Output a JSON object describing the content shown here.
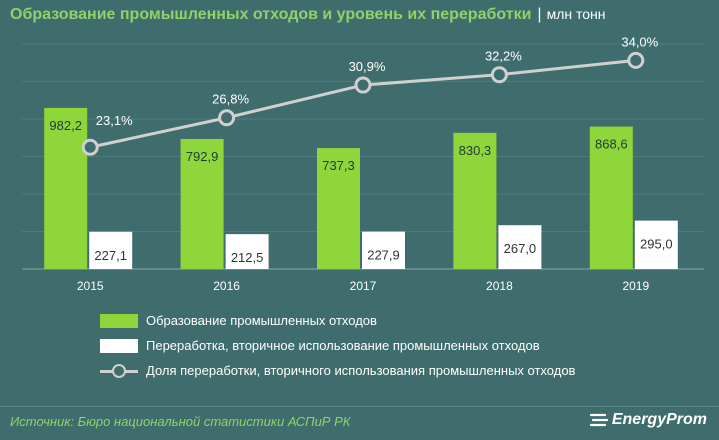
{
  "title": {
    "main": "Образование промышленных отходов и уровень их переработки",
    "separator": "|",
    "unit": "млн тонн"
  },
  "chart_data": {
    "type": "bar",
    "categories": [
      "2015",
      "2016",
      "2017",
      "2018",
      "2019"
    ],
    "series": [
      {
        "name": "Образование промышленных отходов",
        "type": "bar",
        "color": "#8ed639",
        "values": [
          982.2,
          792.9,
          737.3,
          830.3,
          868.6
        ],
        "labels": [
          "982,2",
          "792,9",
          "737,3",
          "830,3",
          "868,6"
        ]
      },
      {
        "name": "Переработка, вторичное использование промышленных отходов",
        "type": "bar",
        "color": "#ffffff",
        "values": [
          227.1,
          212.5,
          227.9,
          267.0,
          295.0
        ],
        "labels": [
          "227,1",
          "212,5",
          "227,9",
          "267,0",
          "295,0"
        ]
      },
      {
        "name": "Доля переработки, вторичного использования промышленных отходов",
        "type": "line",
        "color": "#d0d0d0",
        "unit": "%",
        "values": [
          23.1,
          26.8,
          30.9,
          32.2,
          34.0
        ],
        "labels": [
          "23,1%",
          "26,8%",
          "30,9%",
          "32,2%",
          "34,0%"
        ]
      }
    ],
    "ylim": [
      0,
      1000
    ],
    "grid": true,
    "legend_position": "bottom"
  },
  "legend": [
    {
      "label": "Образование промышленных отходов",
      "style": "green-box"
    },
    {
      "label": "Переработка, вторичное использование промышленных отходов",
      "style": "white-box"
    },
    {
      "label": "Доля переработки, вторичного использования промышленных отходов",
      "style": "line-marker"
    }
  ],
  "footer": {
    "source": "Источник: Бюро национальной  статистики АСПиР РК",
    "brand": "EnergyProm"
  },
  "colors": {
    "background": "#3f6d6d",
    "accent": "#8ed36a",
    "bar_green": "#8ed639",
    "bar_white": "#ffffff",
    "line": "#d0d0d0"
  }
}
